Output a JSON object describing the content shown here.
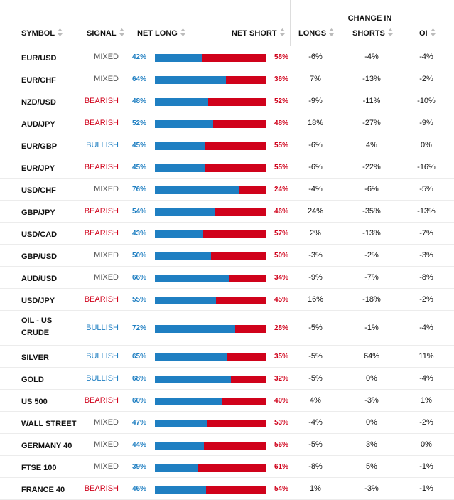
{
  "header": {
    "symbol": "SYMBOL",
    "signal": "SIGNAL",
    "net_long": "NET LONG",
    "net_short": "NET SHORT",
    "change_in": "CHANGE IN",
    "longs": "LONGS",
    "shorts": "SHORTS",
    "oi": "OI"
  },
  "colors": {
    "long": "#1f7fc2",
    "short": "#d0021b",
    "mixed": "#555555"
  },
  "rows": [
    {
      "symbol": "EUR/USD",
      "signal": "MIXED",
      "net_long": "42%",
      "net_short": "58%",
      "long_fraction": 0.42,
      "longs": "-6%",
      "shorts": "-4%",
      "oi": "-4%"
    },
    {
      "symbol": "EUR/CHF",
      "signal": "MIXED",
      "net_long": "64%",
      "net_short": "36%",
      "long_fraction": 0.64,
      "longs": "7%",
      "shorts": "-13%",
      "oi": "-2%"
    },
    {
      "symbol": "NZD/USD",
      "signal": "BEARISH",
      "net_long": "48%",
      "net_short": "52%",
      "long_fraction": 0.48,
      "longs": "-9%",
      "shorts": "-11%",
      "oi": "-10%"
    },
    {
      "symbol": "AUD/JPY",
      "signal": "BEARISH",
      "net_long": "52%",
      "net_short": "48%",
      "long_fraction": 0.52,
      "longs": "18%",
      "shorts": "-27%",
      "oi": "-9%"
    },
    {
      "symbol": "EUR/GBP",
      "signal": "BULLISH",
      "net_long": "45%",
      "net_short": "55%",
      "long_fraction": 0.45,
      "longs": "-6%",
      "shorts": "4%",
      "oi": "0%"
    },
    {
      "symbol": "EUR/JPY",
      "signal": "BEARISH",
      "net_long": "45%",
      "net_short": "55%",
      "long_fraction": 0.45,
      "longs": "-6%",
      "shorts": "-22%",
      "oi": "-16%"
    },
    {
      "symbol": "USD/CHF",
      "signal": "MIXED",
      "net_long": "76%",
      "net_short": "24%",
      "long_fraction": 0.76,
      "longs": "-4%",
      "shorts": "-6%",
      "oi": "-5%"
    },
    {
      "symbol": "GBP/JPY",
      "signal": "BEARISH",
      "net_long": "54%",
      "net_short": "46%",
      "long_fraction": 0.54,
      "longs": "24%",
      "shorts": "-35%",
      "oi": "-13%"
    },
    {
      "symbol": "USD/CAD",
      "signal": "BEARISH",
      "net_long": "43%",
      "net_short": "57%",
      "long_fraction": 0.43,
      "longs": "2%",
      "shorts": "-13%",
      "oi": "-7%"
    },
    {
      "symbol": "GBP/USD",
      "signal": "MIXED",
      "net_long": "50%",
      "net_short": "50%",
      "long_fraction": 0.5,
      "longs": "-3%",
      "shorts": "-2%",
      "oi": "-3%"
    },
    {
      "symbol": "AUD/USD",
      "signal": "MIXED",
      "net_long": "66%",
      "net_short": "34%",
      "long_fraction": 0.66,
      "longs": "-9%",
      "shorts": "-7%",
      "oi": "-8%"
    },
    {
      "symbol": "USD/JPY",
      "signal": "BEARISH",
      "net_long": "55%",
      "net_short": "45%",
      "long_fraction": 0.55,
      "longs": "16%",
      "shorts": "-18%",
      "oi": "-2%"
    },
    {
      "symbol": "OIL - US CRUDE",
      "signal": "BULLISH",
      "net_long": "72%",
      "net_short": "28%",
      "long_fraction": 0.72,
      "longs": "-5%",
      "shorts": "-1%",
      "oi": "-4%"
    },
    {
      "symbol": "SILVER",
      "signal": "BULLISH",
      "net_long": "65%",
      "net_short": "35%",
      "long_fraction": 0.65,
      "longs": "-5%",
      "shorts": "64%",
      "oi": "11%"
    },
    {
      "symbol": "GOLD",
      "signal": "BULLISH",
      "net_long": "68%",
      "net_short": "32%",
      "long_fraction": 0.68,
      "longs": "-5%",
      "shorts": "0%",
      "oi": "-4%"
    },
    {
      "symbol": "US 500",
      "signal": "BEARISH",
      "net_long": "60%",
      "net_short": "40%",
      "long_fraction": 0.6,
      "longs": "4%",
      "shorts": "-3%",
      "oi": "1%"
    },
    {
      "symbol": "WALL STREET",
      "signal": "MIXED",
      "net_long": "47%",
      "net_short": "53%",
      "long_fraction": 0.47,
      "longs": "-4%",
      "shorts": "0%",
      "oi": "-2%"
    },
    {
      "symbol": "GERMANY 40",
      "signal": "MIXED",
      "net_long": "44%",
      "net_short": "56%",
      "long_fraction": 0.44,
      "longs": "-5%",
      "shorts": "3%",
      "oi": "0%"
    },
    {
      "symbol": "FTSE 100",
      "signal": "MIXED",
      "net_long": "39%",
      "net_short": "61%",
      "long_fraction": 0.39,
      "longs": "-8%",
      "shorts": "5%",
      "oi": "-1%"
    },
    {
      "symbol": "FRANCE 40",
      "signal": "BEARISH",
      "net_long": "46%",
      "net_short": "54%",
      "long_fraction": 0.46,
      "longs": "1%",
      "shorts": "-3%",
      "oi": "-1%"
    }
  ]
}
